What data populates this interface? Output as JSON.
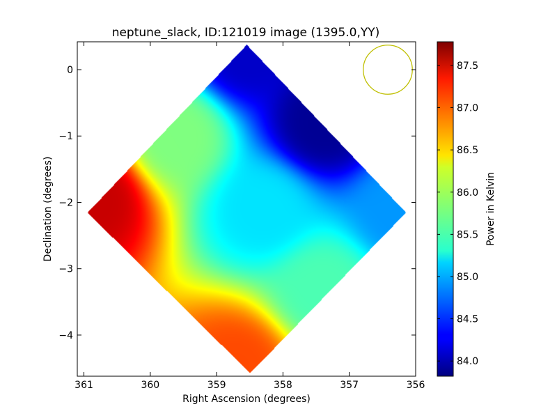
{
  "chart_data": {
    "type": "heatmap",
    "title": "neptune_slack, ID:121019 image (1395.0,YY)",
    "xlabel": "Right Ascension (degrees)",
    "ylabel": "Declination (degrees)",
    "xlim": [
      361.1,
      356.0
    ],
    "ylim": [
      -4.62,
      0.42
    ],
    "xticks": [
      {
        "value": 361,
        "label": "361"
      },
      {
        "value": 360,
        "label": "360"
      },
      {
        "value": 359,
        "label": "359"
      },
      {
        "value": 358,
        "label": "358"
      },
      {
        "value": 357,
        "label": "357"
      },
      {
        "value": 356,
        "label": "356"
      }
    ],
    "yticks": [
      {
        "value": 0,
        "label": "0"
      },
      {
        "value": -1,
        "label": "−1"
      },
      {
        "value": -2,
        "label": "−2"
      },
      {
        "value": -3,
        "label": "−3"
      },
      {
        "value": -4,
        "label": "−4"
      }
    ],
    "colormap": "jet",
    "colorbar": {
      "label": "Power in Kelvin",
      "range": [
        83.82,
        87.78
      ],
      "ticks": [
        {
          "value": 84.0,
          "label": "84.0"
        },
        {
          "value": 84.5,
          "label": "84.5"
        },
        {
          "value": 85.0,
          "label": "85.0"
        },
        {
          "value": 85.5,
          "label": "85.5"
        },
        {
          "value": 86.0,
          "label": "86.0"
        },
        {
          "value": 86.5,
          "label": "86.5"
        },
        {
          "value": 87.0,
          "label": "87.0"
        },
        {
          "value": 87.5,
          "label": "87.5"
        }
      ]
    },
    "map": {
      "footprint_corners": [
        {
          "ra": 358.55,
          "dec": 0.38
        },
        {
          "ra": 356.15,
          "dec": -2.15
        },
        {
          "ra": 358.5,
          "dec": -4.57
        },
        {
          "ra": 360.95,
          "dec": -2.15
        }
      ],
      "center": {
        "ra": 358.5,
        "dec": -2.1
      },
      "approx_values": [
        {
          "ra": 358.55,
          "dec": 0.3,
          "power": 84.1
        },
        {
          "ra": 357.4,
          "dec": -0.8,
          "power": 83.9
        },
        {
          "ra": 356.2,
          "dec": -2.1,
          "power": 84.9
        },
        {
          "ra": 358.3,
          "dec": -2.1,
          "power": 85.2
        },
        {
          "ra": 360.85,
          "dec": -1.95,
          "power": 87.5
        },
        {
          "ra": 358.7,
          "dec": -4.45,
          "power": 87.0
        },
        {
          "ra": 359.6,
          "dec": -1.0,
          "power": 85.8
        },
        {
          "ra": 357.4,
          "dec": -3.3,
          "power": 85.6
        }
      ]
    },
    "beam_circle": {
      "ra": 356.42,
      "dec": 0.0,
      "radius_deg": 0.37,
      "color": "#bfbf00"
    }
  }
}
